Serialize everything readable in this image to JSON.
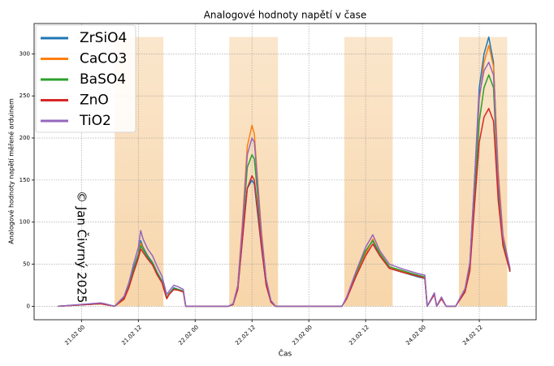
{
  "chart_data": {
    "type": "line",
    "title": "Analogové hodnoty napětí v čase",
    "xlabel": "Čas",
    "ylabel": "Analogové hodnoty napětí měřené arduinem",
    "annotation": "© Jan Čivrný 2025",
    "xlim": [
      -10,
      96
    ],
    "ylim": [
      -16,
      336
    ],
    "xticks": [
      {
        "value": 0,
        "label": "21.02 00"
      },
      {
        "value": 12,
        "label": "21.02 12"
      },
      {
        "value": 24,
        "label": "22.02 00"
      },
      {
        "value": 36,
        "label": "22.02 12"
      },
      {
        "value": 48,
        "label": "23.02 00"
      },
      {
        "value": 60,
        "label": "23.02 12"
      },
      {
        "value": 72,
        "label": "24.02 00"
      },
      {
        "value": 84,
        "label": "24.02 12"
      }
    ],
    "yticks": [
      0,
      50,
      100,
      150,
      200,
      250,
      300
    ],
    "grid": true,
    "legend": "upper left",
    "shaded_regions": {
      "color": "#f5c88e",
      "spans": [
        [
          7,
          17.3
        ],
        [
          31.2,
          41.5
        ],
        [
          55.5,
          65.7
        ],
        [
          79.7,
          89.9
        ]
      ],
      "y": [
        0,
        320
      ]
    },
    "x": [
      -5,
      4,
      5,
      7,
      9,
      10,
      11,
      12,
      12.5,
      13,
      14,
      15,
      16,
      17,
      18,
      18.5,
      19.5,
      20.5,
      21.5,
      22,
      31,
      32,
      33,
      34,
      35,
      36,
      36.5,
      37,
      38,
      39,
      40,
      41,
      55,
      56,
      58,
      60,
      61.5,
      63,
      65,
      68,
      71,
      72.5,
      73,
      74.5,
      75,
      76,
      77,
      79,
      81,
      82,
      83,
      84,
      85,
      86,
      87,
      88,
      89,
      90.5
    ],
    "series": [
      {
        "name": "ZrSiO4",
        "color": "#1f77b4",
        "values": [
          0,
          3,
          2,
          0,
          10,
          25,
          45,
          62,
          78,
          70,
          60,
          52,
          40,
          30,
          10,
          15,
          22,
          20,
          18,
          0,
          0,
          2,
          20,
          80,
          140,
          150,
          145,
          120,
          70,
          25,
          5,
          0,
          0,
          10,
          40,
          65,
          78,
          60,
          45,
          40,
          35,
          33,
          0,
          15,
          0,
          10,
          0,
          0,
          20,
          50,
          150,
          260,
          300,
          320,
          290,
          150,
          80,
          42
        ]
      },
      {
        "name": "CaCO3",
        "color": "#ff7f0e",
        "values": [
          0,
          3,
          2,
          0,
          8,
          22,
          42,
          60,
          75,
          68,
          58,
          50,
          38,
          28,
          9,
          14,
          21,
          19,
          17,
          0,
          0,
          2,
          25,
          100,
          190,
          215,
          205,
          165,
          90,
          30,
          6,
          0,
          0,
          9,
          38,
          62,
          80,
          62,
          46,
          41,
          36,
          34,
          0,
          14,
          0,
          9,
          0,
          0,
          18,
          48,
          140,
          245,
          290,
          310,
          285,
          160,
          85,
          44
        ]
      },
      {
        "name": "BaSO4",
        "color": "#2ca02c",
        "values": [
          0,
          3,
          2,
          0,
          9,
          24,
          43,
          60,
          72,
          67,
          58,
          51,
          39,
          29,
          10,
          15,
          21,
          20,
          18,
          0,
          0,
          2,
          22,
          90,
          165,
          180,
          175,
          145,
          80,
          28,
          5,
          0,
          0,
          10,
          40,
          66,
          78,
          63,
          47,
          42,
          37,
          35,
          0,
          15,
          0,
          10,
          0,
          0,
          19,
          45,
          130,
          220,
          260,
          275,
          260,
          140,
          78,
          43
        ]
      },
      {
        "name": "ZnO",
        "color": "#d62728",
        "values": [
          0,
          3,
          2,
          0,
          9,
          22,
          40,
          57,
          68,
          64,
          56,
          49,
          37,
          28,
          9,
          14,
          20,
          19,
          17,
          0,
          0,
          2,
          20,
          80,
          140,
          155,
          150,
          125,
          72,
          25,
          5,
          0,
          0,
          9,
          36,
          60,
          74,
          60,
          45,
          40,
          36,
          33,
          0,
          14,
          0,
          9,
          0,
          0,
          17,
          42,
          120,
          195,
          225,
          235,
          220,
          125,
          72,
          41
        ]
      },
      {
        "name": "TiO2",
        "color": "#9467bd",
        "values": [
          0,
          4,
          3,
          0,
          12,
          28,
          50,
          70,
          90,
          80,
          68,
          60,
          47,
          36,
          14,
          18,
          25,
          23,
          20,
          0,
          0,
          3,
          24,
          95,
          180,
          200,
          195,
          160,
          85,
          32,
          7,
          0,
          0,
          11,
          42,
          70,
          85,
          66,
          50,
          44,
          39,
          37,
          0,
          16,
          0,
          11,
          0,
          0,
          21,
          52,
          150,
          250,
          280,
          290,
          275,
          150,
          82,
          45
        ]
      }
    ]
  }
}
